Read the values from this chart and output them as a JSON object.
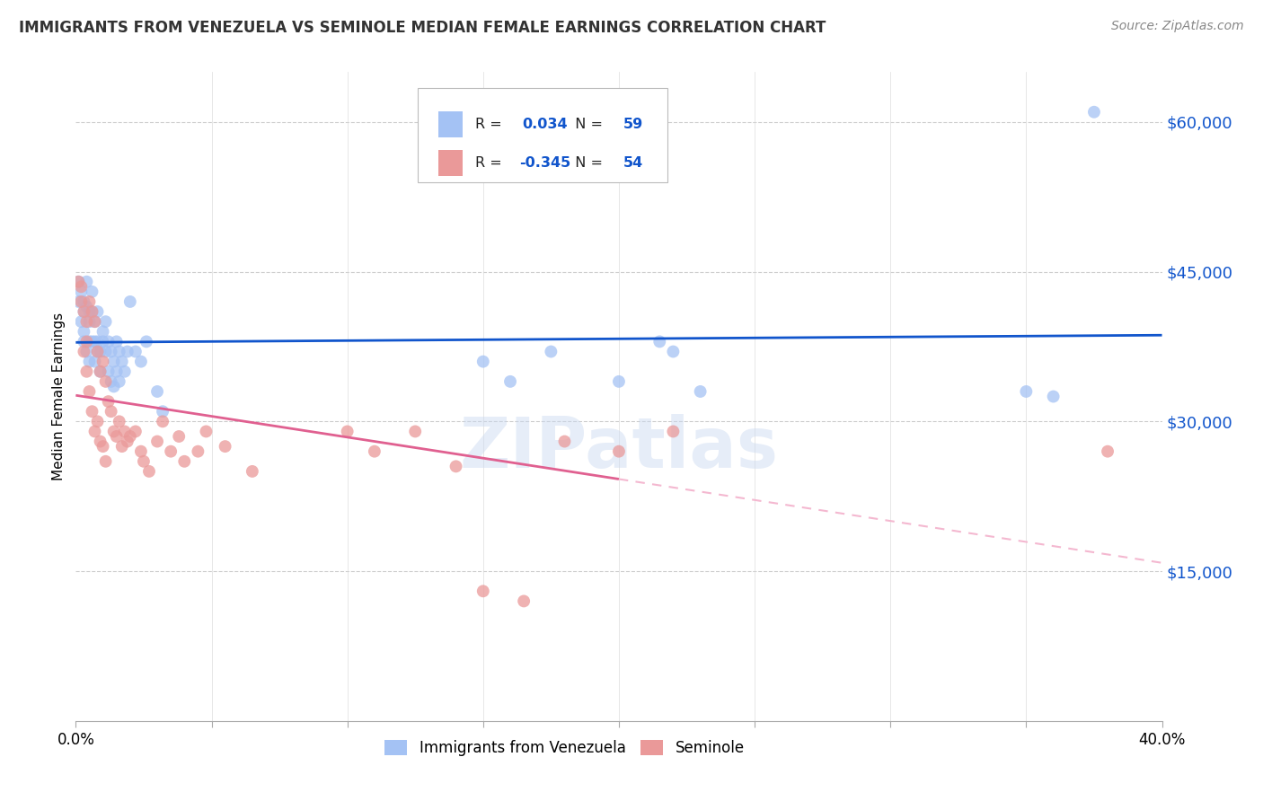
{
  "title": "IMMIGRANTS FROM VENEZUELA VS SEMINOLE MEDIAN FEMALE EARNINGS CORRELATION CHART",
  "source": "Source: ZipAtlas.com",
  "ylabel": "Median Female Earnings",
  "legend1_label": "Immigrants from Venezuela",
  "legend2_label": "Seminole",
  "r1": "0.034",
  "n1": "59",
  "r2": "-0.345",
  "n2": "54",
  "blue_color": "#a4c2f4",
  "pink_color": "#ea9999",
  "blue_line_color": "#1155cc",
  "pink_line_color": "#e06090",
  "pink_dash_color": "#f4b8d0",
  "background_color": "#ffffff",
  "watermark": "ZIPatlas",
  "xmin": 0.0,
  "xmax": 0.4,
  "ymin": 0,
  "ymax": 65000,
  "ytick_labels": [
    "$15,000",
    "$30,000",
    "$45,000",
    "$60,000"
  ],
  "ytick_values": [
    15000,
    30000,
    45000,
    60000
  ],
  "blue_scatter_x": [
    0.001,
    0.001,
    0.002,
    0.002,
    0.003,
    0.003,
    0.003,
    0.003,
    0.004,
    0.004,
    0.004,
    0.005,
    0.005,
    0.005,
    0.005,
    0.006,
    0.006,
    0.006,
    0.007,
    0.007,
    0.007,
    0.008,
    0.008,
    0.008,
    0.009,
    0.009,
    0.01,
    0.01,
    0.011,
    0.011,
    0.012,
    0.012,
    0.013,
    0.013,
    0.014,
    0.014,
    0.015,
    0.015,
    0.016,
    0.016,
    0.017,
    0.018,
    0.019,
    0.02,
    0.022,
    0.024,
    0.026,
    0.03,
    0.032,
    0.15,
    0.16,
    0.175,
    0.2,
    0.215,
    0.22,
    0.23,
    0.35,
    0.36,
    0.375
  ],
  "blue_scatter_y": [
    44000,
    42000,
    43000,
    40000,
    42000,
    41000,
    39000,
    38000,
    44000,
    41500,
    37000,
    41000,
    40000,
    38000,
    36000,
    43000,
    41000,
    38000,
    40000,
    38000,
    36000,
    38000,
    41000,
    37000,
    37000,
    35000,
    39000,
    38000,
    40000,
    37000,
    38000,
    35000,
    37000,
    34000,
    36000,
    33500,
    38000,
    35000,
    37000,
    34000,
    36000,
    35000,
    37000,
    42000,
    37000,
    36000,
    38000,
    33000,
    31000,
    36000,
    34000,
    37000,
    34000,
    38000,
    37000,
    33000,
    33000,
    32500,
    61000
  ],
  "pink_scatter_x": [
    0.001,
    0.002,
    0.002,
    0.003,
    0.003,
    0.004,
    0.004,
    0.004,
    0.005,
    0.005,
    0.006,
    0.006,
    0.007,
    0.007,
    0.008,
    0.008,
    0.009,
    0.009,
    0.01,
    0.01,
    0.011,
    0.011,
    0.012,
    0.013,
    0.014,
    0.015,
    0.016,
    0.017,
    0.018,
    0.019,
    0.02,
    0.022,
    0.024,
    0.025,
    0.027,
    0.03,
    0.032,
    0.035,
    0.038,
    0.04,
    0.045,
    0.048,
    0.055,
    0.065,
    0.1,
    0.11,
    0.125,
    0.14,
    0.15,
    0.165,
    0.18,
    0.2,
    0.22,
    0.38
  ],
  "pink_scatter_y": [
    44000,
    43500,
    42000,
    41000,
    37000,
    40000,
    38000,
    35000,
    42000,
    33000,
    41000,
    31000,
    40000,
    29000,
    37000,
    30000,
    35000,
    28000,
    36000,
    27500,
    34000,
    26000,
    32000,
    31000,
    29000,
    28500,
    30000,
    27500,
    29000,
    28000,
    28500,
    29000,
    27000,
    26000,
    25000,
    28000,
    30000,
    27000,
    28500,
    26000,
    27000,
    29000,
    27500,
    25000,
    29000,
    27000,
    29000,
    25500,
    13000,
    12000,
    28000,
    27000,
    29000,
    27000
  ]
}
